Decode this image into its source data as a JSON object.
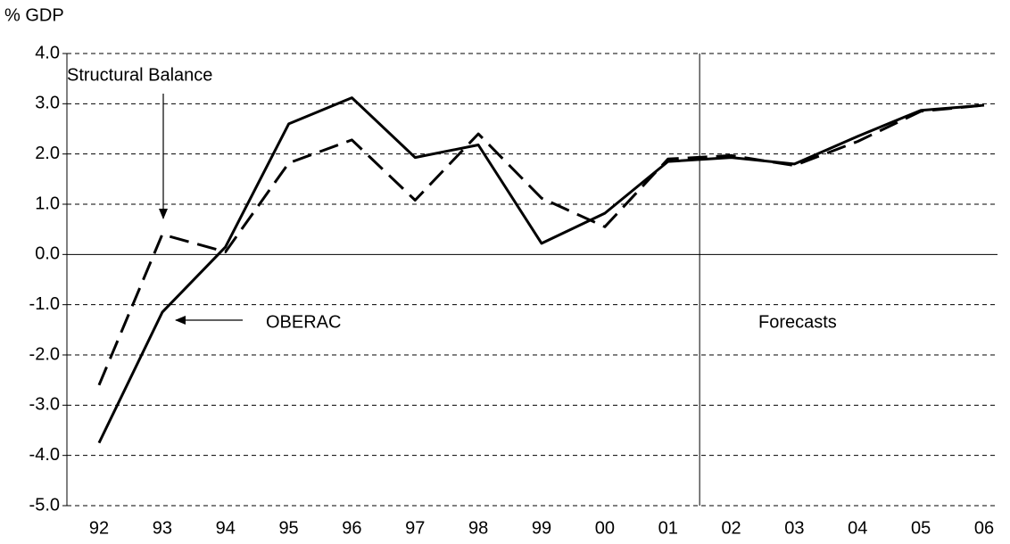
{
  "chart_data": {
    "type": "line",
    "y_axis_label": "% GDP",
    "categories": [
      "92",
      "93",
      "94",
      "95",
      "96",
      "97",
      "98",
      "99",
      "00",
      "01",
      "02",
      "03",
      "04",
      "05",
      "06"
    ],
    "series": [
      {
        "name": "OBERAC",
        "color": "#000000",
        "style": "solid",
        "values": [
          -3.75,
          -1.15,
          0.15,
          2.6,
          3.12,
          1.93,
          2.18,
          0.22,
          0.82,
          1.85,
          1.93,
          1.8,
          2.35,
          2.87,
          2.97
        ]
      },
      {
        "name": "Structural Balance",
        "color": "#000000",
        "style": "dashed",
        "values": [
          -2.6,
          0.4,
          0.05,
          1.82,
          2.28,
          1.08,
          2.4,
          1.12,
          0.55,
          1.9,
          1.97,
          1.77,
          2.25,
          2.85,
          2.97
        ]
      }
    ],
    "annotations": [
      "Forecasts"
    ],
    "ylim": [
      -5,
      4
    ],
    "yticks": [
      {
        "value": 4,
        "label": "4.0"
      },
      {
        "value": 3,
        "label": "3.0"
      },
      {
        "value": 2,
        "label": "2.0"
      },
      {
        "value": 1,
        "label": "1.0"
      },
      {
        "value": 0,
        "label": "0.0"
      },
      {
        "value": -1,
        "label": "-1.0"
      },
      {
        "value": -2,
        "label": "-2.0"
      },
      {
        "value": -3,
        "label": "-3.0"
      },
      {
        "value": -4,
        "label": "-4.0"
      },
      {
        "value": -5,
        "label": "-5.0"
      }
    ],
    "grid": true
  }
}
